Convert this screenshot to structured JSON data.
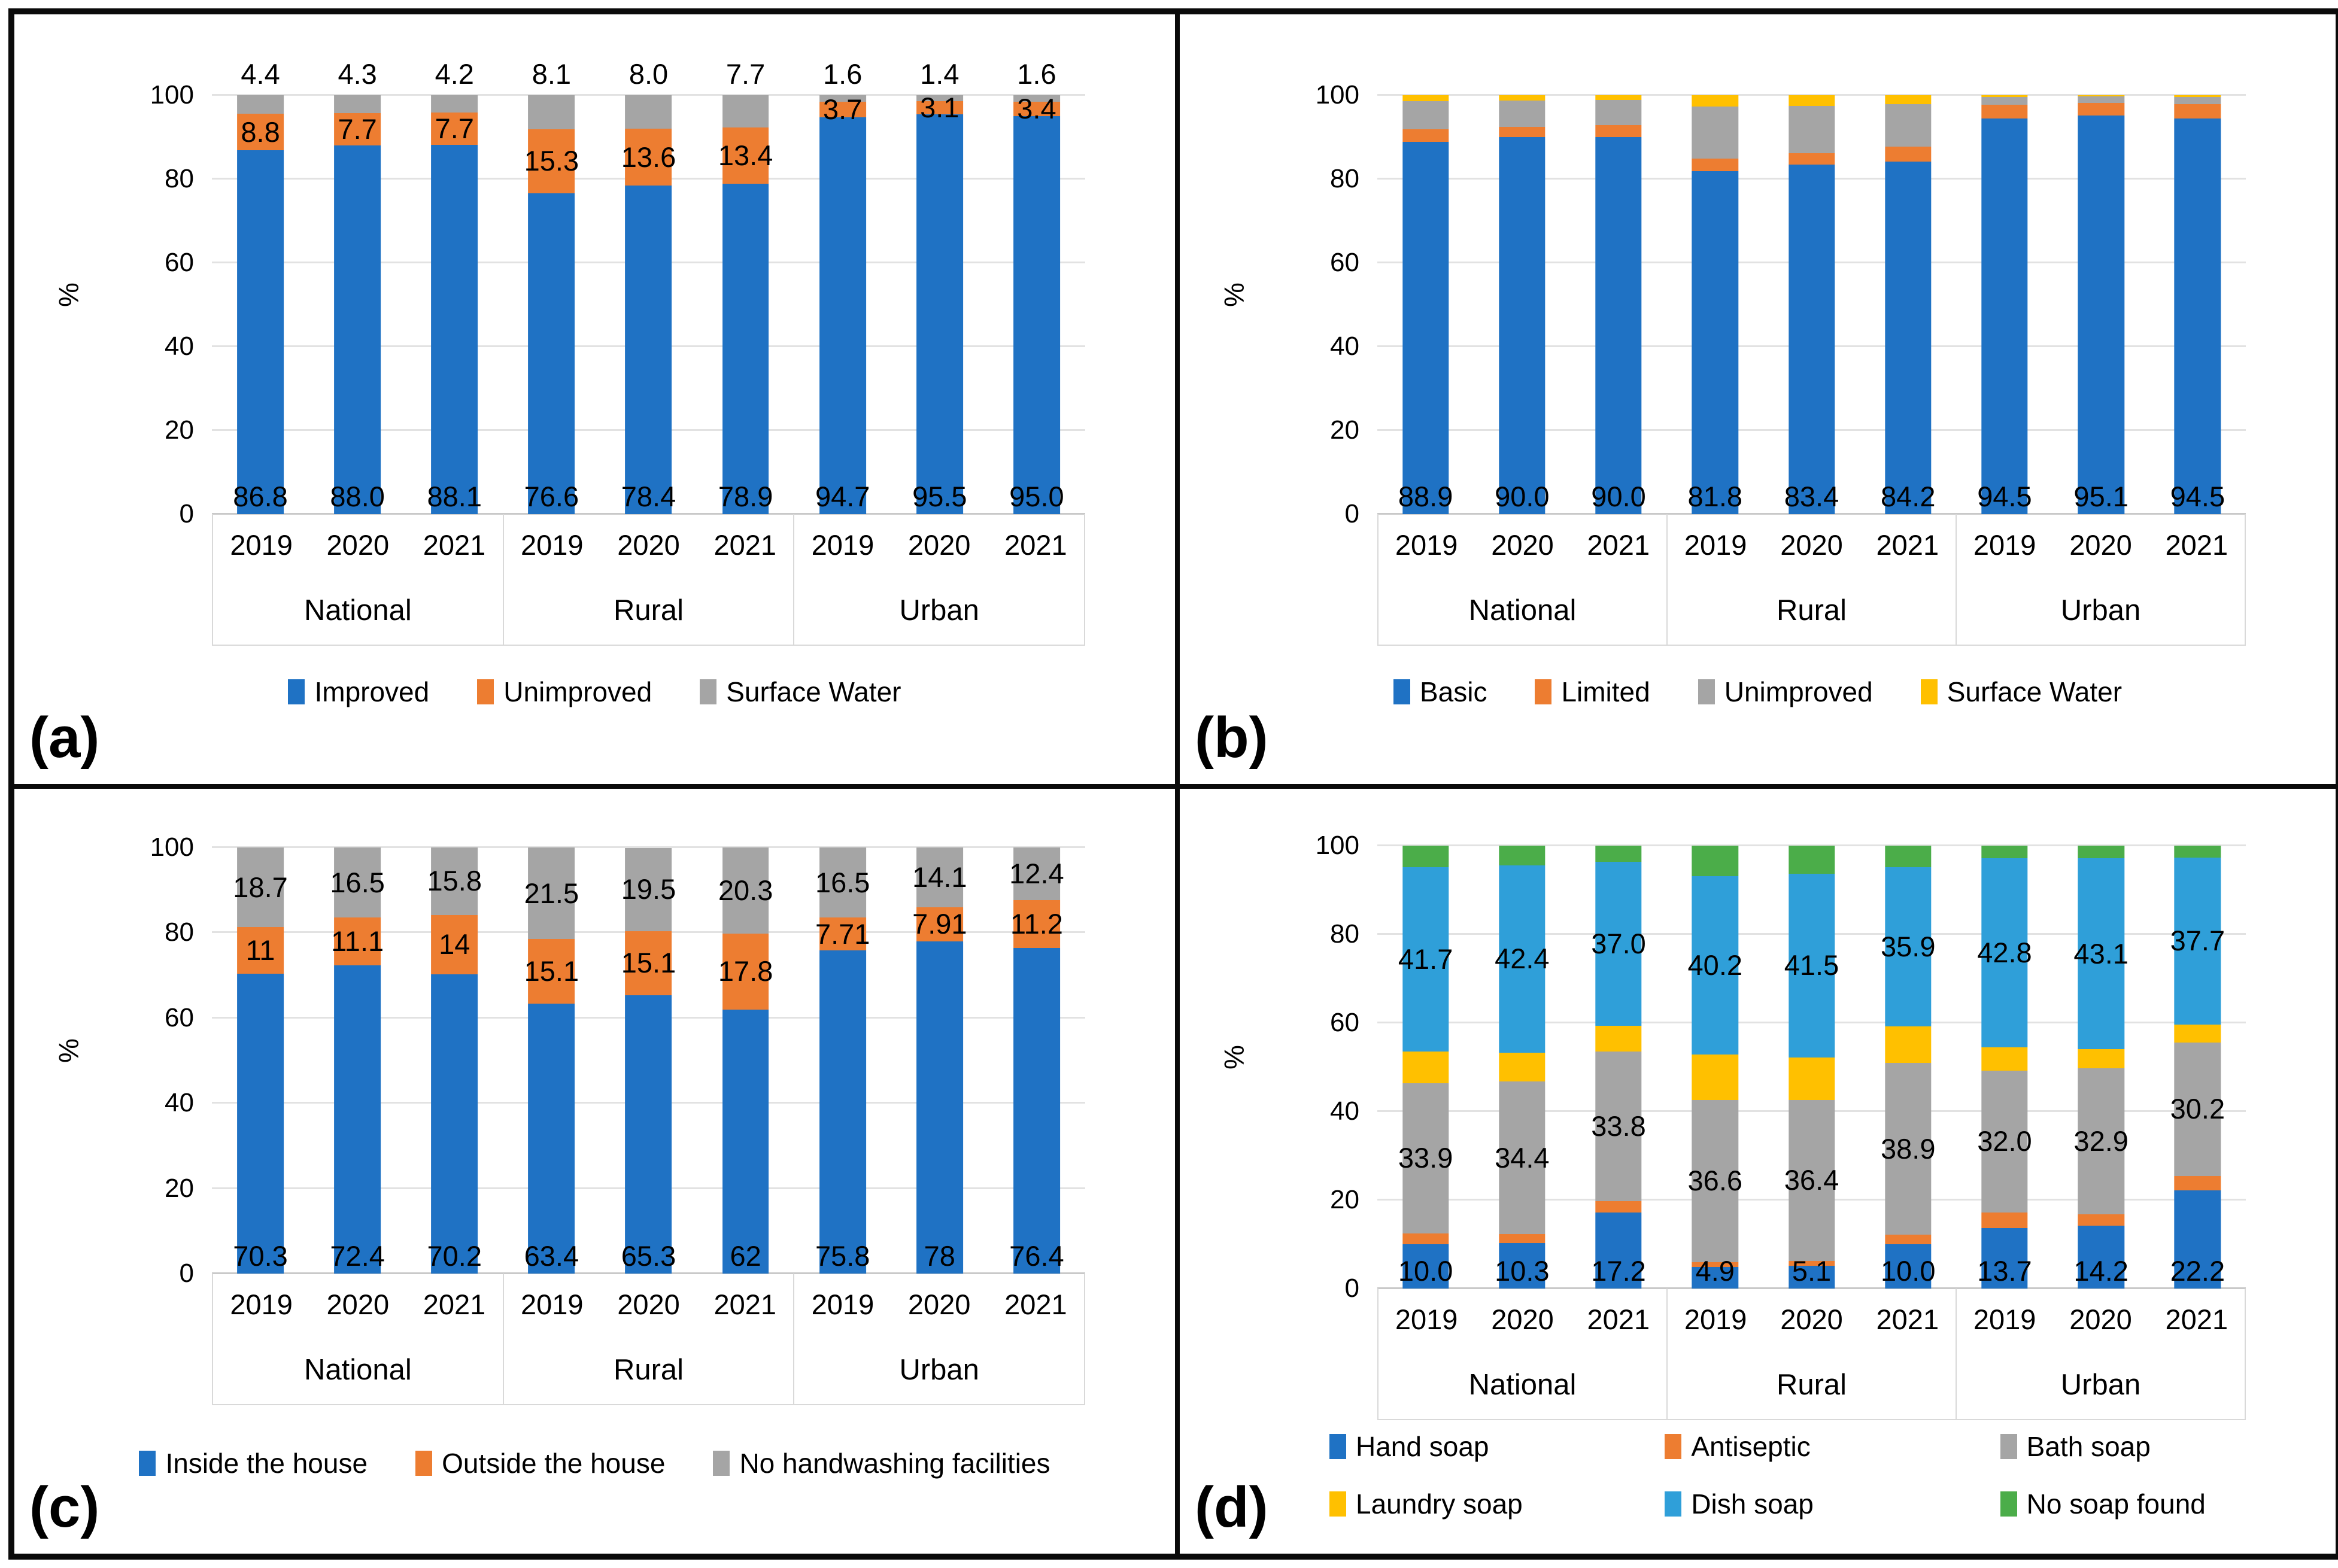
{
  "figure": {
    "background": "#ffffff",
    "border_color": "#0a0a0a"
  },
  "colors": {
    "blue": "#1F72C4",
    "orange": "#ED7D31",
    "gray": "#A5A5A5",
    "yellow": "#FFC000",
    "skyblue": "#2F9FD9",
    "green": "#4BAD49",
    "gridline": "#E2E2E2",
    "axis_line": "#C9C9C9",
    "table_border": "#D9D9D9"
  },
  "axis": {
    "ylabel": "%",
    "yticks": [
      0,
      20,
      40,
      60,
      80,
      100
    ],
    "ymin": 0,
    "ymax": 100
  },
  "groups": [
    "National",
    "Rural",
    "Urban"
  ],
  "years": [
    "2019",
    "2020",
    "2021"
  ],
  "chart_data": [
    {
      "id": "a",
      "panel_label": "(a)",
      "type": "bar",
      "stacked": true,
      "title": "",
      "xlabel": "",
      "ylabel": "%",
      "ylim": [
        0,
        100
      ],
      "yticks": [
        0,
        20,
        40,
        60,
        80,
        100
      ],
      "grid": true,
      "legend_position": "bottom",
      "groups": [
        "National",
        "Rural",
        "Urban"
      ],
      "years": [
        "2019",
        "2020",
        "2021"
      ],
      "categories": [
        "National 2019",
        "National 2020",
        "National 2021",
        "Rural 2019",
        "Rural 2020",
        "Rural 2021",
        "Urban 2019",
        "Urban 2020",
        "Urban 2021"
      ],
      "series": [
        {
          "name": "Improved",
          "color_key": "blue",
          "values": [
            86.8,
            88.0,
            88.1,
            76.6,
            78.4,
            78.9,
            94.7,
            95.5,
            95.0
          ],
          "data_labels": [
            "86.8",
            "88.0",
            "88.1",
            "76.6",
            "78.4",
            "78.9",
            "94.7",
            "95.5",
            "95.0"
          ],
          "label_placement": "base"
        },
        {
          "name": "Unimproved",
          "color_key": "orange",
          "values": [
            8.8,
            7.7,
            7.7,
            15.3,
            13.6,
            13.4,
            3.7,
            3.1,
            3.4
          ],
          "data_labels": [
            "8.8",
            "7.7",
            "7.7",
            "15.3",
            "13.6",
            "13.4",
            "3.7",
            "3.1",
            "3.4"
          ],
          "label_placement": "center"
        },
        {
          "name": "Surface Water",
          "color_key": "gray",
          "values": [
            4.4,
            4.3,
            4.2,
            8.1,
            8.0,
            7.7,
            1.6,
            1.4,
            1.6
          ],
          "data_labels": [
            "4.4",
            "4.3",
            "4.2",
            "8.1",
            "8.0",
            "7.7",
            "1.6",
            "1.4",
            "1.6"
          ],
          "label_placement": "above"
        }
      ],
      "legend_rows": [
        [
          0,
          1,
          2
        ]
      ]
    },
    {
      "id": "b",
      "panel_label": "(b)",
      "type": "bar",
      "stacked": true,
      "title": "",
      "xlabel": "",
      "ylabel": "%",
      "ylim": [
        0,
        100
      ],
      "yticks": [
        0,
        20,
        40,
        60,
        80,
        100
      ],
      "grid": true,
      "legend_position": "bottom",
      "groups": [
        "National",
        "Rural",
        "Urban"
      ],
      "years": [
        "2019",
        "2020",
        "2021"
      ],
      "categories": [
        "National 2019",
        "National 2020",
        "National 2021",
        "Rural 2019",
        "Rural 2020",
        "Rural 2021",
        "Urban 2019",
        "Urban 2020",
        "Urban 2021"
      ],
      "series": [
        {
          "name": "Basic",
          "color_key": "blue",
          "values": [
            88.9,
            90.0,
            90.0,
            81.8,
            83.4,
            84.2,
            94.5,
            95.1,
            94.5
          ],
          "data_labels": [
            "88.9",
            "90.0",
            "90.0",
            "81.8",
            "83.4",
            "84.2",
            "94.5",
            "95.1",
            "94.5"
          ],
          "label_placement": "base"
        },
        {
          "name": "Limited",
          "color_key": "orange",
          "values": [
            3.0,
            2.4,
            2.9,
            3.0,
            2.8,
            3.5,
            3.2,
            3.0,
            3.4
          ],
          "data_labels": null,
          "label_placement": "none"
        },
        {
          "name": "Unimproved",
          "color_key": "gray",
          "values": [
            6.7,
            6.3,
            5.9,
            12.5,
            11.2,
            10.2,
            1.9,
            1.6,
            1.7
          ],
          "data_labels": null,
          "label_placement": "none"
        },
        {
          "name": "Surface Water",
          "color_key": "yellow",
          "values": [
            1.4,
            1.3,
            1.2,
            2.7,
            2.6,
            2.1,
            0.4,
            0.3,
            0.4
          ],
          "data_labels": null,
          "label_placement": "none"
        }
      ],
      "legend_rows": [
        [
          0,
          1,
          2,
          3
        ]
      ]
    },
    {
      "id": "c",
      "panel_label": "(c)",
      "type": "bar",
      "stacked": true,
      "title": "",
      "xlabel": "",
      "ylabel": "%",
      "ylim": [
        0,
        100
      ],
      "yticks": [
        0,
        20,
        40,
        60,
        80,
        100
      ],
      "grid": true,
      "legend_position": "bottom",
      "groups": [
        "National",
        "Rural",
        "Urban"
      ],
      "years": [
        "2019",
        "2020",
        "2021"
      ],
      "categories": [
        "National 2019",
        "National 2020",
        "National 2021",
        "Rural 2019",
        "Rural 2020",
        "Rural 2021",
        "Urban 2019",
        "Urban 2020",
        "Urban 2021"
      ],
      "series": [
        {
          "name": "Inside the house",
          "color_key": "blue",
          "values": [
            70.3,
            72.4,
            70.2,
            63.4,
            65.3,
            62,
            75.8,
            78,
            76.4
          ],
          "data_labels": [
            "70.3",
            "72.4",
            "70.2",
            "63.4",
            "65.3",
            "62",
            "75.8",
            "78",
            "76.4"
          ],
          "label_placement": "base"
        },
        {
          "name": "Outside the house",
          "color_key": "orange",
          "values": [
            11,
            11.1,
            14,
            15.1,
            15.1,
            17.8,
            7.71,
            7.91,
            11.2
          ],
          "data_labels": [
            "11",
            "11.1",
            "14",
            "15.1",
            "15.1",
            "17.8",
            "7.71",
            "7.91",
            "11.2"
          ],
          "label_placement": "center"
        },
        {
          "name": "No handwashing facilities",
          "color_key": "gray",
          "values": [
            18.7,
            16.5,
            15.8,
            21.5,
            19.5,
            20.3,
            16.5,
            14.1,
            12.4
          ],
          "data_labels": [
            "18.7",
            "16.5",
            "15.8",
            "21.5",
            "19.5",
            "20.3",
            "16.5",
            "14.1",
            "12.4"
          ],
          "label_placement": "center"
        }
      ],
      "legend_rows": [
        [
          0,
          1,
          2
        ]
      ]
    },
    {
      "id": "d",
      "panel_label": "(d)",
      "type": "bar",
      "stacked": true,
      "title": "",
      "xlabel": "",
      "ylabel": "%",
      "ylim": [
        0,
        100
      ],
      "yticks": [
        0,
        20,
        40,
        60,
        80,
        100
      ],
      "grid": true,
      "legend_position": "bottom",
      "groups": [
        "National",
        "Rural",
        "Urban"
      ],
      "years": [
        "2019",
        "2020",
        "2021"
      ],
      "categories": [
        "National 2019",
        "National 2020",
        "National 2021",
        "Rural 2019",
        "Rural 2020",
        "Rural 2021",
        "Urban 2019",
        "Urban 2020",
        "Urban 2021"
      ],
      "series": [
        {
          "name": "Hand soap",
          "color_key": "blue",
          "values": [
            10.0,
            10.3,
            17.2,
            4.9,
            5.1,
            10.0,
            13.7,
            14.2,
            22.2
          ],
          "data_labels": [
            "10.0",
            "10.3",
            "17.2",
            "4.9",
            "5.1",
            "10.0",
            "13.7",
            "14.2",
            "22.2"
          ],
          "label_placement": "base"
        },
        {
          "name": "Antiseptic",
          "color_key": "orange",
          "values": [
            2.5,
            2.0,
            2.5,
            1.1,
            1.1,
            2.1,
            3.5,
            2.6,
            3.2
          ],
          "data_labels": null,
          "label_placement": "none"
        },
        {
          "name": "Bath soap",
          "color_key": "gray",
          "values": [
            33.9,
            34.4,
            33.8,
            36.6,
            36.4,
            38.9,
            32.0,
            32.9,
            30.2
          ],
          "data_labels": [
            "33.9",
            "34.4",
            "33.8",
            "36.6",
            "36.4",
            "38.9",
            "32.0",
            "32.9",
            "30.2"
          ],
          "label_placement": "center"
        },
        {
          "name": "Laundry soap",
          "color_key": "yellow",
          "values": [
            7.1,
            6.5,
            5.8,
            10.3,
            9.6,
            8.2,
            5.2,
            4.3,
            4.0
          ],
          "data_labels": null,
          "label_placement": "none"
        },
        {
          "name": "Dish soap",
          "color_key": "skyblue",
          "values": [
            41.7,
            42.4,
            37.0,
            40.2,
            41.5,
            35.9,
            42.8,
            43.1,
            37.7
          ],
          "data_labels": [
            "41.7",
            "42.4",
            "37.0",
            "40.2",
            "41.5",
            "35.9",
            "42.8",
            "43.1",
            "37.7"
          ],
          "label_placement": "center"
        },
        {
          "name": "No soap found",
          "color_key": "green",
          "values": [
            4.8,
            4.4,
            3.7,
            6.9,
            6.3,
            4.9,
            2.8,
            2.9,
            2.7
          ],
          "data_labels": null,
          "label_placement": "none"
        }
      ],
      "legend_rows": [
        [
          0,
          1,
          2
        ],
        [
          3,
          4,
          5
        ]
      ]
    }
  ]
}
